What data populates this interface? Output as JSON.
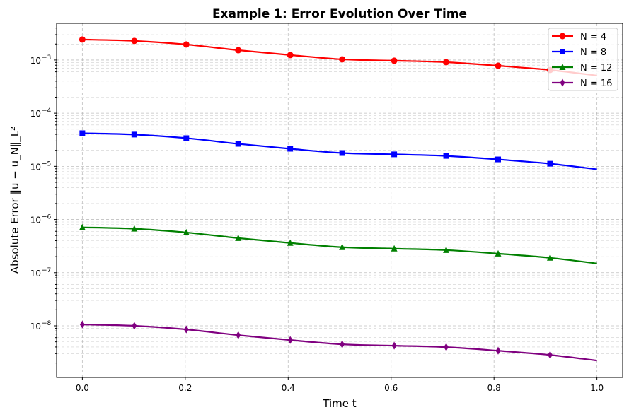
{
  "chart_data": {
    "type": "line",
    "title": "Example 1: Error Evolution Over Time",
    "xlabel": "Time t",
    "ylabel": "Absolute Error ‖u − u_N‖_L²",
    "yscale": "log",
    "xlim": [
      -0.05,
      1.05
    ],
    "ylim": [
      1.07e-09,
      0.0049
    ],
    "xticks": [
      0,
      0.2,
      0.4,
      0.6,
      0.8,
      1.0
    ],
    "xtick_labels": [
      "0.0",
      "0.2",
      "0.4",
      "0.6",
      "0.8",
      "1.0"
    ],
    "yticks": [
      -8,
      -7,
      -6,
      -5,
      -4,
      -3
    ],
    "ytick_labels": [
      "10",
      "10",
      "10",
      "10",
      "10",
      "10"
    ],
    "ytick_exps": [
      "−8",
      "−7",
      "−6",
      "−5",
      "−4",
      "−3"
    ],
    "grid": true,
    "legend_position": "top-right",
    "x": [
      0,
      0.101,
      0.202,
      0.303,
      0.404,
      0.505,
      0.606,
      0.707,
      0.808,
      0.909,
      1.0
    ],
    "series": [
      {
        "name": "N = 4",
        "color": "#ff0000",
        "marker": "circle",
        "values": [
          0.00243,
          0.00229,
          0.00196,
          0.00153,
          0.00124,
          0.00103,
          0.00097,
          0.00091,
          0.00078,
          0.00065,
          0.00051
        ]
      },
      {
        "name": "N = 8",
        "color": "#0000ff",
        "marker": "square",
        "values": [
          4.2e-05,
          3.96e-05,
          3.39e-05,
          2.65e-05,
          2.14e-05,
          1.78e-05,
          1.68e-05,
          1.57e-05,
          1.35e-05,
          1.12e-05,
          8.8e-06
        ]
      },
      {
        "name": "N = 12",
        "color": "#008000",
        "marker": "triangle",
        "values": [
          7.1e-07,
          6.7e-07,
          5.7e-07,
          4.47e-07,
          3.62e-07,
          3.01e-07,
          2.83e-07,
          2.66e-07,
          2.28e-07,
          1.9e-07,
          1.49e-07
        ]
      },
      {
        "name": "N = 16",
        "color": "#800080",
        "marker": "diamond",
        "values": [
          1.06e-08,
          1e-08,
          8.55e-09,
          6.67e-09,
          5.4e-09,
          4.49e-09,
          4.23e-09,
          3.97e-09,
          3.4e-09,
          2.83e-09,
          2.22e-09
        ]
      }
    ]
  }
}
